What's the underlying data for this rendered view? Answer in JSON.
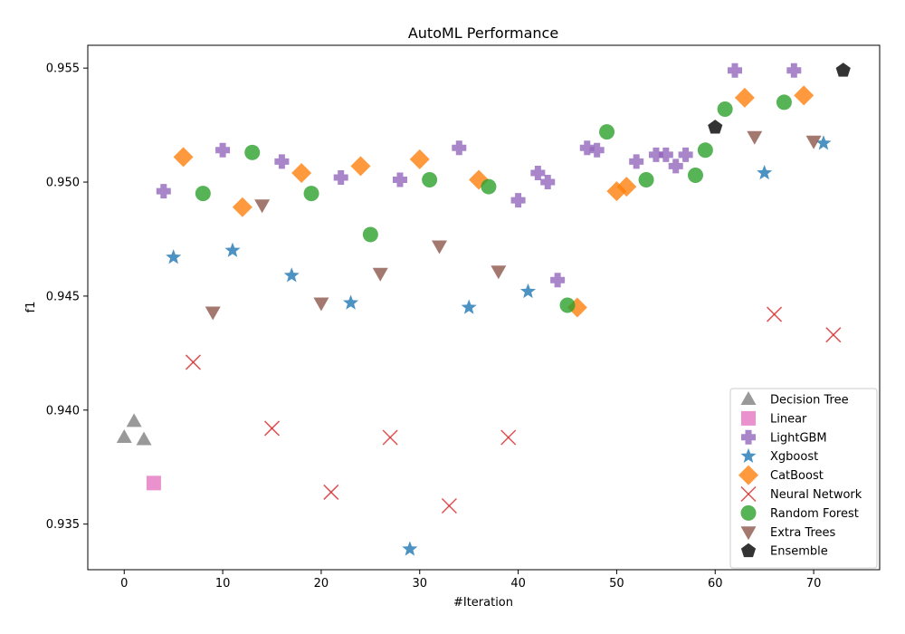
{
  "chart_data": {
    "type": "scatter",
    "title": "AutoML Performance",
    "xlabel": "#Iteration",
    "ylabel": "f1",
    "xlim": [
      -3.7,
      76.7
    ],
    "ylim": [
      0.933,
      0.956
    ],
    "xticks": [
      0,
      10,
      20,
      30,
      40,
      50,
      60,
      70
    ],
    "yticks": [
      0.935,
      0.94,
      0.945,
      0.95,
      0.955
    ],
    "ytick_labels": [
      "0.935",
      "0.940",
      "0.945",
      "0.950",
      "0.955"
    ],
    "grid": false,
    "legend_position": "lower-right",
    "series": [
      {
        "name": "Decision Tree",
        "marker": "triangle",
        "color": "#7f7f7f",
        "points": [
          [
            0,
            0.9388
          ],
          [
            1,
            0.9395
          ],
          [
            2,
            0.9387
          ]
        ]
      },
      {
        "name": "Linear",
        "marker": "square",
        "color": "#e377c2",
        "points": [
          [
            3,
            0.9368
          ]
        ]
      },
      {
        "name": "LightGBM",
        "marker": "plus",
        "color": "#9467bd",
        "points": [
          [
            4,
            0.9496
          ],
          [
            10,
            0.9514
          ],
          [
            16,
            0.9509
          ],
          [
            22,
            0.9502
          ],
          [
            28,
            0.9501
          ],
          [
            34,
            0.9515
          ],
          [
            40,
            0.9492
          ],
          [
            42,
            0.9504
          ],
          [
            43,
            0.95
          ],
          [
            44,
            0.9457
          ],
          [
            47,
            0.9515
          ],
          [
            48,
            0.9514
          ],
          [
            52,
            0.9509
          ],
          [
            54,
            0.9512
          ],
          [
            55,
            0.9512
          ],
          [
            56,
            0.9507
          ],
          [
            57,
            0.9512
          ],
          [
            62,
            0.9549
          ],
          [
            68,
            0.9549
          ]
        ]
      },
      {
        "name": "Xgboost",
        "marker": "star",
        "color": "#1f77b4",
        "points": [
          [
            5,
            0.9467
          ],
          [
            11,
            0.947
          ],
          [
            17,
            0.9459
          ],
          [
            23,
            0.9447
          ],
          [
            29,
            0.9339
          ],
          [
            35,
            0.9445
          ],
          [
            41,
            0.9452
          ],
          [
            65,
            0.9504
          ],
          [
            71,
            0.9517
          ]
        ]
      },
      {
        "name": "CatBoost",
        "marker": "diamond",
        "color": "#ff7f0e",
        "points": [
          [
            6,
            0.9511
          ],
          [
            12,
            0.9489
          ],
          [
            18,
            0.9504
          ],
          [
            24,
            0.9507
          ],
          [
            30,
            0.951
          ],
          [
            36,
            0.9501
          ],
          [
            46,
            0.9445
          ],
          [
            50,
            0.9496
          ],
          [
            51,
            0.9498
          ],
          [
            63,
            0.9537
          ],
          [
            69,
            0.9538
          ]
        ]
      },
      {
        "name": "Neural Network",
        "marker": "x",
        "color": "#d62728",
        "points": [
          [
            7,
            0.9421
          ],
          [
            15,
            0.9392
          ],
          [
            21,
            0.9364
          ],
          [
            27,
            0.9388
          ],
          [
            33,
            0.9358
          ],
          [
            39,
            0.9388
          ],
          [
            66,
            0.9442
          ],
          [
            72,
            0.9433
          ]
        ]
      },
      {
        "name": "Random Forest",
        "marker": "circle",
        "color": "#2ca02c",
        "points": [
          [
            8,
            0.9495
          ],
          [
            13,
            0.9513
          ],
          [
            19,
            0.9495
          ],
          [
            25,
            0.9477
          ],
          [
            31,
            0.9501
          ],
          [
            37,
            0.9498
          ],
          [
            45,
            0.9446
          ],
          [
            49,
            0.9522
          ],
          [
            53,
            0.9501
          ],
          [
            58,
            0.9503
          ],
          [
            59,
            0.9514
          ],
          [
            61,
            0.9532
          ],
          [
            67,
            0.9535
          ]
        ]
      },
      {
        "name": "Extra Trees",
        "marker": "triangle-down",
        "color": "#8c564b",
        "points": [
          [
            9,
            0.9443
          ],
          [
            14,
            0.949
          ],
          [
            20,
            0.9447
          ],
          [
            26,
            0.946
          ],
          [
            32,
            0.9472
          ],
          [
            38,
            0.9461
          ],
          [
            64,
            0.952
          ],
          [
            70,
            0.9518
          ]
        ]
      },
      {
        "name": "Ensemble",
        "marker": "pentagon",
        "color": "#000000",
        "points": [
          [
            60,
            0.9524
          ],
          [
            73,
            0.9549
          ]
        ]
      }
    ]
  }
}
